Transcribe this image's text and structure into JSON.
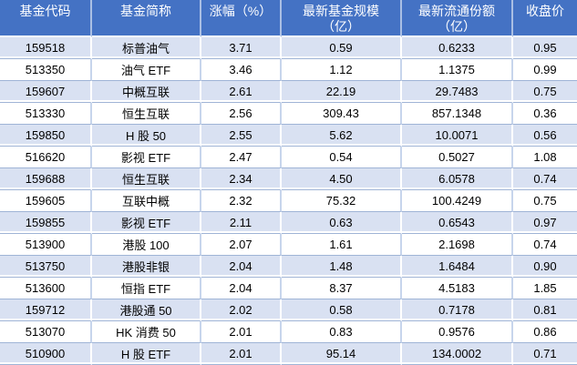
{
  "colors": {
    "header_bg": "#4472C4",
    "header_text": "#FFFFFF",
    "band_row_bg": "#D9E1F2",
    "plain_row_bg": "#FFFFFF",
    "grid_line": "#9FB4D6"
  },
  "table": {
    "columns": [
      {
        "label": "基金代码"
      },
      {
        "label": "基金简称"
      },
      {
        "label": "涨幅（%）"
      },
      {
        "label": "最新基金规模\n（亿）"
      },
      {
        "label": "最新流通份额\n（亿）"
      },
      {
        "label": "收盘价"
      }
    ],
    "rows": [
      [
        "159518",
        "标普油气",
        "3.71",
        "0.59",
        "0.6233",
        "0.95"
      ],
      [
        "513350",
        "油气 ETF",
        "3.46",
        "1.12",
        "1.1375",
        "0.99"
      ],
      [
        "159607",
        "中概互联",
        "2.61",
        "22.19",
        "29.7483",
        "0.75"
      ],
      [
        "513330",
        "恒生互联",
        "2.56",
        "309.43",
        "857.1348",
        "0.36"
      ],
      [
        "159850",
        "H 股 50",
        "2.55",
        "5.62",
        "10.0071",
        "0.56"
      ],
      [
        "516620",
        "影视 ETF",
        "2.47",
        "0.54",
        "0.5027",
        "1.08"
      ],
      [
        "159688",
        "恒生互联",
        "2.34",
        "4.50",
        "6.0578",
        "0.74"
      ],
      [
        "159605",
        "互联中概",
        "2.32",
        "75.32",
        "100.4249",
        "0.75"
      ],
      [
        "159855",
        "影视 ETF",
        "2.11",
        "0.63",
        "0.6543",
        "0.97"
      ],
      [
        "513900",
        "港股 100",
        "2.07",
        "1.61",
        "2.1698",
        "0.74"
      ],
      [
        "513750",
        "港股非银",
        "2.04",
        "1.48",
        "1.6484",
        "0.90"
      ],
      [
        "513600",
        "恒指 ETF",
        "2.04",
        "8.37",
        "4.5183",
        "1.85"
      ],
      [
        "159712",
        "港股通 50",
        "2.02",
        "0.58",
        "0.7178",
        "0.81"
      ],
      [
        "513070",
        "HK 消费 50",
        "2.01",
        "0.83",
        "0.9576",
        "0.86"
      ],
      [
        "510900",
        "H 股 ETF",
        "2.01",
        "95.14",
        "134.0002",
        "0.71"
      ]
    ]
  }
}
